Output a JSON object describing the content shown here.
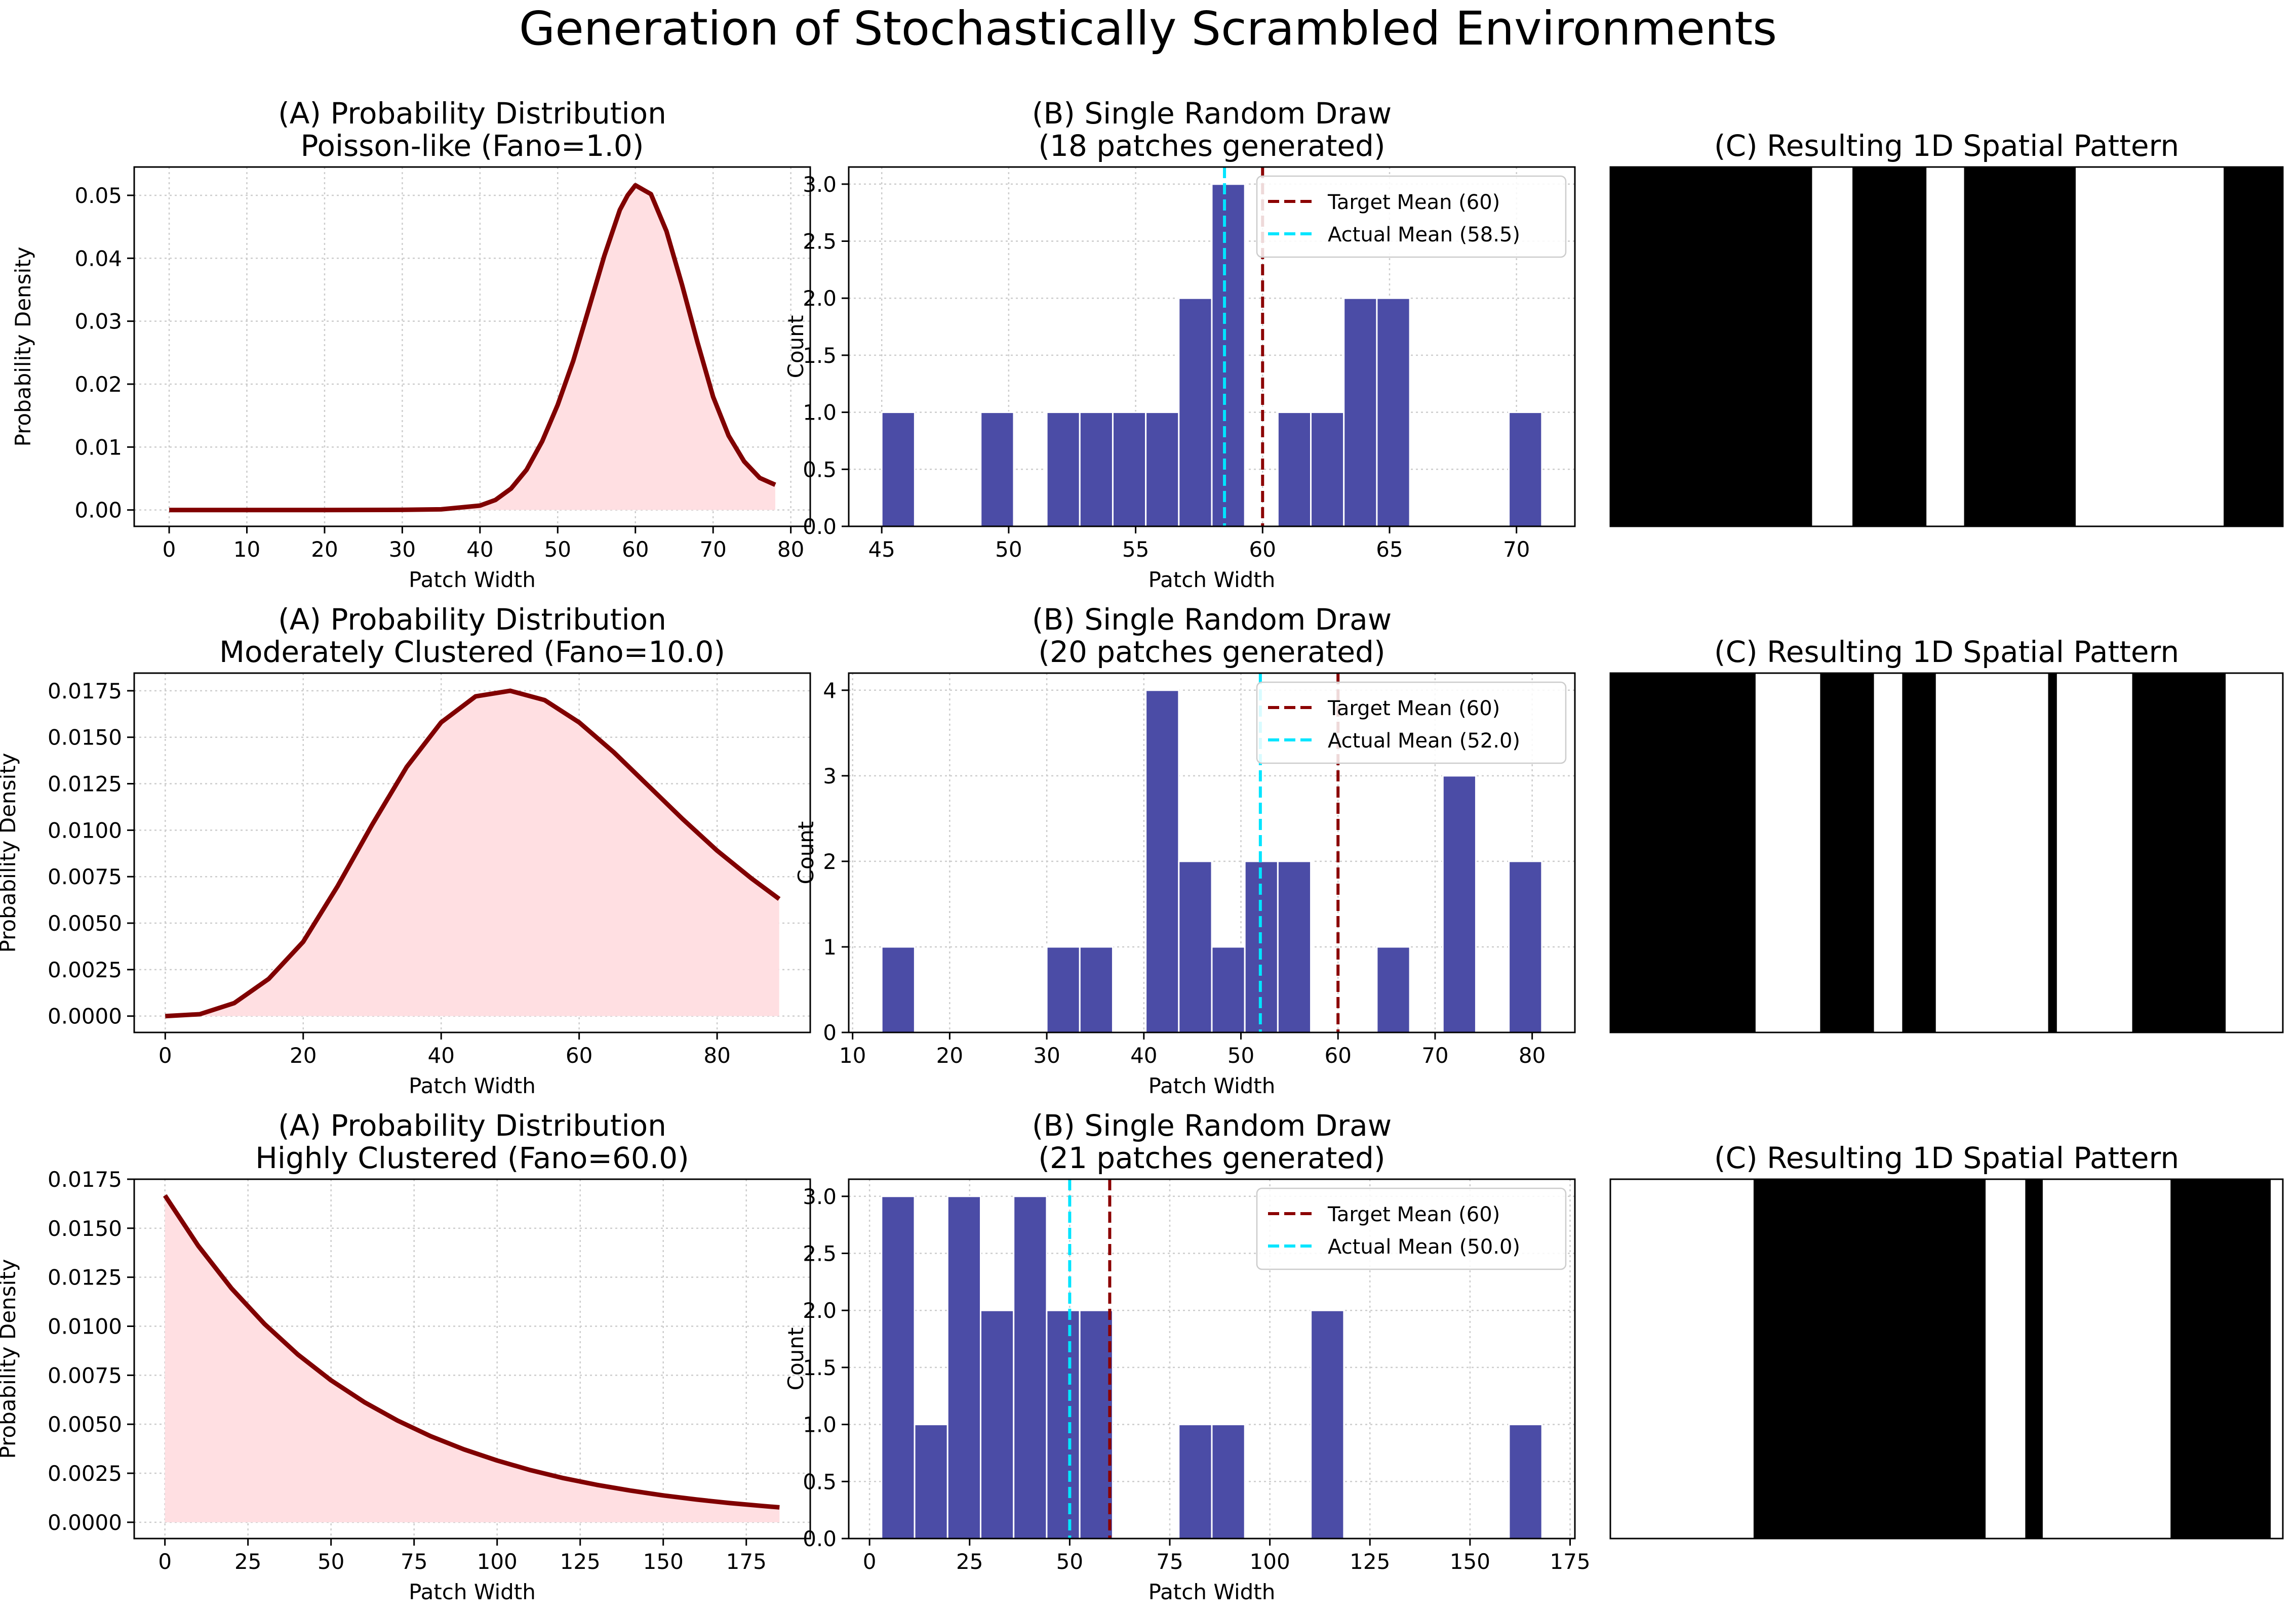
{
  "suptitle": "Generation of Stochastically Scrambled Environments",
  "colors": {
    "density_line": "#800000",
    "density_fill": "#ffdfe2",
    "bars": "#4b4ca6",
    "target_line": "#8b0000",
    "actual_line": "#00e5ff",
    "grid": "#cccccc"
  },
  "chart_data": [
    {
      "type": "area",
      "panel": "A",
      "row": 1,
      "title": "(A) Probability Distribution",
      "subtitle": "Poisson-like (Fano=1.0)",
      "xlabel": "Patch Width",
      "ylabel": "Probability Density",
      "xlim": [
        -4.5,
        82.5
      ],
      "ylim": [
        -0.0026,
        0.0545
      ],
      "xticks": [
        0,
        10,
        20,
        30,
        40,
        50,
        60,
        70,
        80
      ],
      "xtick_labels": [
        "0",
        "10",
        "20",
        "30",
        "40",
        "50",
        "60",
        "70",
        "80"
      ],
      "yticks": [
        0,
        0.01,
        0.02,
        0.03,
        0.04,
        0.05
      ],
      "ytick_labels": [
        "0.00",
        "0.01",
        "0.02",
        "0.03",
        "0.04",
        "0.05"
      ],
      "grid": true,
      "series": [
        {
          "x": [
            0,
            10,
            20,
            30,
            35,
            40,
            42,
            44,
            46,
            48,
            50,
            52,
            54,
            56,
            58,
            59,
            60,
            62,
            64,
            66,
            68,
            70,
            72,
            74,
            76,
            78
          ],
          "y": [
            0,
            0,
            0,
            2e-05,
            0.0001,
            0.0007,
            0.0016,
            0.0034,
            0.0064,
            0.0109,
            0.0167,
            0.0237,
            0.032,
            0.0404,
            0.0477,
            0.05,
            0.0516,
            0.0502,
            0.0443,
            0.0358,
            0.0266,
            0.018,
            0.0118,
            0.0077,
            0.0051,
            0.004
          ]
        }
      ]
    },
    {
      "type": "bar",
      "panel": "B",
      "row": 1,
      "title": "(B) Single Random Draw",
      "subtitle": "(18 patches generated)",
      "xlabel": "Patch Width",
      "ylabel": "Count",
      "xlim": [
        43.7,
        72.3
      ],
      "ylim": [
        0,
        3.15
      ],
      "xticks": [
        45,
        50,
        55,
        60,
        65,
        70
      ],
      "xtick_labels": [
        "45",
        "50",
        "55",
        "60",
        "65",
        "70"
      ],
      "yticks": [
        0,
        0.5,
        1.0,
        1.5,
        2.0,
        2.5,
        3.0
      ],
      "ytick_labels": [
        "0.0",
        "0.5",
        "1.0",
        "1.5",
        "2.0",
        "2.5",
        "3.0"
      ],
      "grid": true,
      "bins": {
        "start": 45,
        "width": 1.3
      },
      "counts": [
        1,
        0,
        0,
        1,
        0,
        1,
        1,
        1,
        1,
        2,
        3,
        0,
        1,
        1,
        2,
        2,
        0,
        0,
        0,
        1
      ],
      "target_mean": 60,
      "actual_mean": 58.5,
      "legend": [
        "Target Mean (60)",
        "Actual Mean (58.5)"
      ],
      "legend_position": "upper right"
    },
    {
      "type": "pattern",
      "panel": "C",
      "row": 1,
      "title": "(C) Resulting 1D Spatial Pattern",
      "segments": [
        [
          0,
          0.3,
          "black"
        ],
        [
          0.3,
          0.36,
          "white"
        ],
        [
          0.36,
          0.47,
          "black"
        ],
        [
          0.47,
          0.526,
          "white"
        ],
        [
          0.526,
          0.692,
          "black"
        ],
        [
          0.692,
          0.912,
          "white"
        ],
        [
          0.912,
          1,
          "black"
        ]
      ]
    },
    {
      "type": "area",
      "panel": "A",
      "row": 2,
      "title": "(A) Probability Distribution",
      "subtitle": "Moderately Clustered (Fano=10.0)",
      "xlabel": "Patch Width",
      "ylabel": "Probability Density",
      "xlim": [
        -4.5,
        93.5
      ],
      "ylim": [
        -0.00088,
        0.01845
      ],
      "xticks": [
        0,
        20,
        40,
        60,
        80
      ],
      "xtick_labels": [
        "0",
        "20",
        "40",
        "60",
        "80"
      ],
      "yticks": [
        0,
        0.0025,
        0.005,
        0.0075,
        0.01,
        0.0125,
        0.015,
        0.0175
      ],
      "ytick_labels": [
        "0.0000",
        "0.0025",
        "0.0050",
        "0.0075",
        "0.0100",
        "0.0125",
        "0.0150",
        "0.0175"
      ],
      "grid": true,
      "series": [
        {
          "x": [
            0,
            5,
            10,
            15,
            20,
            25,
            30,
            35,
            40,
            45,
            50,
            55,
            60,
            65,
            70,
            75,
            80,
            85,
            89
          ],
          "y": [
            0,
            0.0001,
            0.0007,
            0.002,
            0.004,
            0.007,
            0.0103,
            0.0134,
            0.0158,
            0.0172,
            0.0175,
            0.017,
            0.0158,
            0.0142,
            0.0124,
            0.0106,
            0.0089,
            0.0074,
            0.0063
          ]
        }
      ]
    },
    {
      "type": "bar",
      "panel": "B",
      "row": 2,
      "title": "(B) Single Random Draw",
      "subtitle": "(20 patches generated)",
      "xlabel": "Patch Width",
      "ylabel": "Count",
      "xlim": [
        9.6,
        84.4
      ],
      "ylim": [
        0,
        4.2
      ],
      "xticks": [
        10,
        20,
        30,
        40,
        50,
        60,
        70,
        80
      ],
      "xtick_labels": [
        "10",
        "20",
        "30",
        "40",
        "50",
        "60",
        "70",
        "80"
      ],
      "yticks": [
        0,
        1,
        2,
        3,
        4
      ],
      "ytick_labels": [
        "0",
        "1",
        "2",
        "3",
        "4"
      ],
      "grid": true,
      "bins": {
        "start": 13,
        "width": 3.4
      },
      "counts": [
        1,
        0,
        0,
        0,
        0,
        1,
        1,
        0,
        4,
        2,
        1,
        2,
        2,
        0,
        0,
        1,
        0,
        3,
        0,
        2
      ],
      "target_mean": 60,
      "actual_mean": 52.0,
      "legend": [
        "Target Mean (60)",
        "Actual Mean (52.0)"
      ],
      "legend_position": "upper right"
    },
    {
      "type": "pattern",
      "panel": "C",
      "row": 2,
      "title": "(C) Resulting 1D Spatial Pattern",
      "segments": [
        [
          0,
          0.216,
          "black"
        ],
        [
          0.216,
          0.312,
          "white"
        ],
        [
          0.312,
          0.392,
          "black"
        ],
        [
          0.392,
          0.434,
          "white"
        ],
        [
          0.434,
          0.484,
          "black"
        ],
        [
          0.484,
          0.651,
          "white"
        ],
        [
          0.651,
          0.664,
          "black"
        ],
        [
          0.664,
          0.776,
          "white"
        ],
        [
          0.776,
          0.915,
          "black"
        ],
        [
          0.915,
          1,
          "white"
        ]
      ]
    },
    {
      "type": "area",
      "panel": "A",
      "row": 3,
      "title": "(A) Probability Distribution",
      "subtitle": "Highly Clustered (Fano=60.0)",
      "xlabel": "Patch Width",
      "ylabel": "Probability Density",
      "xlim": [
        -9.25,
        194.25
      ],
      "ylim": [
        -0.00083,
        0.0175
      ],
      "xticks": [
        0,
        25,
        50,
        75,
        100,
        125,
        150,
        175
      ],
      "xtick_labels": [
        "0",
        "25",
        "50",
        "75",
        "100",
        "125",
        "150",
        "175"
      ],
      "yticks": [
        0,
        0.0025,
        0.005,
        0.0075,
        0.01,
        0.0125,
        0.015,
        0.0175
      ],
      "ytick_labels": [
        "0.0000",
        "0.0025",
        "0.0050",
        "0.0075",
        "0.0100",
        "0.0125",
        "0.0150",
        "0.0175"
      ],
      "grid": true,
      "series": [
        {
          "x": [
            0,
            10,
            20,
            30,
            40,
            50,
            60,
            70,
            80,
            90,
            100,
            110,
            120,
            130,
            140,
            150,
            160,
            170,
            180,
            185
          ],
          "y": [
            0.01667,
            0.01411,
            0.01194,
            0.01011,
            0.00856,
            0.00724,
            0.00613,
            0.00519,
            0.00439,
            0.00372,
            0.00315,
            0.00266,
            0.00225,
            0.00191,
            0.00162,
            0.00137,
            0.00116,
            0.00098,
            0.00083,
            0.00076
          ]
        }
      ]
    },
    {
      "type": "bar",
      "panel": "B",
      "row": 3,
      "title": "(B) Single Random Draw",
      "subtitle": "(21 patches generated)",
      "xlabel": "Patch Width",
      "ylabel": "Count",
      "xlim": [
        -5.2,
        176.2
      ],
      "ylim": [
        0,
        3.15
      ],
      "xticks": [
        0,
        25,
        50,
        75,
        100,
        125,
        150,
        175
      ],
      "xtick_labels": [
        "0",
        "25",
        "50",
        "75",
        "100",
        "125",
        "150",
        "175"
      ],
      "yticks": [
        0,
        0.5,
        1.0,
        1.5,
        2.0,
        2.5,
        3.0
      ],
      "ytick_labels": [
        "0.0",
        "0.5",
        "1.0",
        "1.5",
        "2.0",
        "2.5",
        "3.0"
      ],
      "grid": true,
      "bins": {
        "start": 3,
        "width": 8.25
      },
      "counts": [
        3,
        1,
        3,
        2,
        3,
        2,
        2,
        0,
        0,
        1,
        1,
        0,
        0,
        2,
        0,
        0,
        0,
        0,
        0,
        1
      ],
      "target_mean": 60,
      "actual_mean": 50.0,
      "legend": [
        "Target Mean (60)",
        "Actual Mean (50.0)"
      ],
      "legend_position": "upper right"
    },
    {
      "type": "pattern",
      "panel": "C",
      "row": 3,
      "title": "(C) Resulting 1D Spatial Pattern",
      "segments": [
        [
          0,
          0.213,
          "white"
        ],
        [
          0.213,
          0.558,
          "black"
        ],
        [
          0.558,
          0.617,
          "white"
        ],
        [
          0.617,
          0.643,
          "black"
        ],
        [
          0.643,
          0.833,
          "white"
        ],
        [
          0.833,
          0.982,
          "black"
        ],
        [
          0.982,
          1,
          "white"
        ]
      ]
    }
  ]
}
